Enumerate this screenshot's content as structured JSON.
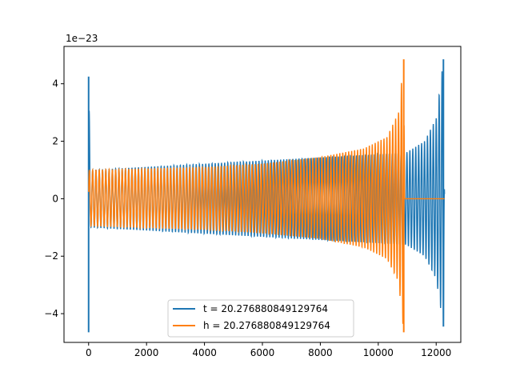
{
  "chart_data": {
    "type": "line",
    "title": "",
    "xlabel": "",
    "ylabel": "",
    "y_offset_label": "1e−23",
    "y_scale": 1e-23,
    "xlim": [
      -850,
      12850
    ],
    "ylim": [
      -5.0,
      5.3
    ],
    "x_ticks": [
      0,
      2000,
      4000,
      6000,
      8000,
      10000,
      12000
    ],
    "x_tick_labels": [
      "0",
      "2000",
      "4000",
      "6000",
      "8000",
      "10000",
      "12000"
    ],
    "y_ticks": [
      -4,
      -2,
      0,
      2,
      4
    ],
    "y_tick_labels": [
      "−4",
      "−2",
      "0",
      "2",
      "4"
    ],
    "grid": false,
    "legend_position": "lower center",
    "series": [
      {
        "name": "t = 20.276880849129764",
        "color": "#1f77b4",
        "description": "wrapped chirp waveform; spike at x≈0, merger peak near x≈12250",
        "points": [
          {
            "x": 0,
            "y_min": -4.65,
            "y_max": 4.25
          },
          {
            "x": 60,
            "y_min": -1.0,
            "y_max": 1.0
          },
          {
            "x": 10950,
            "y_min": -1.6,
            "y_max": 1.6
          },
          {
            "x": 11600,
            "y_min": -2.0,
            "y_max": 2.0
          },
          {
            "x": 12000,
            "y_min": -2.8,
            "y_max": 2.8
          },
          {
            "x": 12250,
            "y_min": -4.45,
            "y_max": 4.85
          },
          {
            "x": 12290,
            "y_min": 0.0,
            "y_max": 0.0
          }
        ]
      },
      {
        "name": "h = 20.276880849129764",
        "color": "#ff7f0e",
        "description": "chirp waveform with merger near x≈10900, zero afterwards",
        "points": [
          {
            "x": 0,
            "y_min": -0.95,
            "y_max": 1.0
          },
          {
            "x": 2000,
            "y_min": -1.02,
            "y_max": 1.05
          },
          {
            "x": 4000,
            "y_min": -1.08,
            "y_max": 1.1
          },
          {
            "x": 6000,
            "y_min": -1.2,
            "y_max": 1.22
          },
          {
            "x": 8000,
            "y_min": -1.4,
            "y_max": 1.45
          },
          {
            "x": 9500,
            "y_min": -1.7,
            "y_max": 1.75
          },
          {
            "x": 10300,
            "y_min": -2.1,
            "y_max": 2.15
          },
          {
            "x": 10700,
            "y_min": -2.9,
            "y_max": 3.0
          },
          {
            "x": 10880,
            "y_min": -4.65,
            "y_max": 4.85
          },
          {
            "x": 10910,
            "y_min": 0.0,
            "y_max": 0.0
          },
          {
            "x": 12290,
            "y_min": 0.0,
            "y_max": 0.0
          }
        ]
      }
    ]
  }
}
